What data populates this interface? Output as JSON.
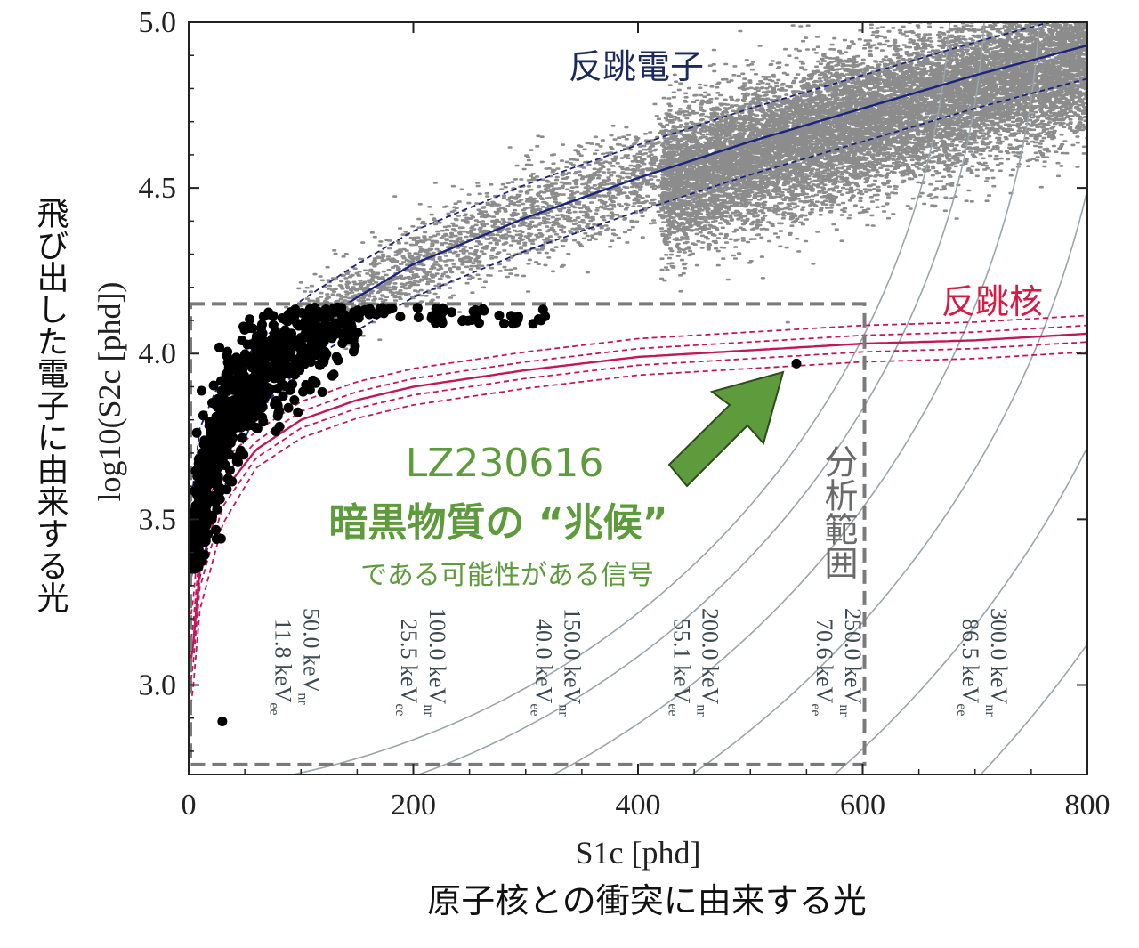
{
  "chart_data": {
    "type": "scatter",
    "xlabel": "S1c [phd]",
    "ylabel": "log10(S2c [phd])",
    "xlabel_ja": "原子核との衝突に由来する光",
    "ylabel_ja": "飛び出した電子に由来する光",
    "xlim": [
      0,
      800
    ],
    "ylim": [
      2.73,
      5.0
    ],
    "x_ticks": [
      "0",
      "200",
      "400",
      "600",
      "800"
    ],
    "y_ticks": [
      "3.0",
      "3.5",
      "4.0",
      "4.5",
      "5.0"
    ],
    "grid": false,
    "bands": [
      {
        "name": "反跳電子",
        "color": "#1a237e",
        "points": [
          [
            2,
            3.3
          ],
          [
            10,
            3.55
          ],
          [
            30,
            3.76
          ],
          [
            60,
            3.92
          ],
          [
            100,
            4.06
          ],
          [
            150,
            4.17
          ],
          [
            200,
            4.27
          ],
          [
            300,
            4.41
          ],
          [
            400,
            4.53
          ],
          [
            500,
            4.64
          ],
          [
            600,
            4.74
          ],
          [
            700,
            4.84
          ],
          [
            800,
            4.93
          ]
        ]
      },
      {
        "name": "反跳核",
        "color": "#c2185b",
        "points": [
          [
            2,
            3.05
          ],
          [
            10,
            3.35
          ],
          [
            30,
            3.58
          ],
          [
            60,
            3.71
          ],
          [
            100,
            3.8
          ],
          [
            150,
            3.86
          ],
          [
            200,
            3.9
          ],
          [
            300,
            3.95
          ],
          [
            400,
            3.99
          ],
          [
            500,
            4.01
          ],
          [
            600,
            4.03
          ],
          [
            700,
            4.04
          ],
          [
            800,
            4.06
          ]
        ]
      }
    ],
    "energy_contours": [
      {
        "nr": "50.0 keV",
        "ee": "11.8 keV",
        "x_at_bottom": 93
      },
      {
        "nr": "100.0 keV",
        "ee": "25.5 keV",
        "x_at_bottom": 205
      },
      {
        "nr": "150.0 keV",
        "ee": "40.0 keV",
        "x_at_bottom": 325
      },
      {
        "nr": "200.0 keV",
        "ee": "55.1 keV",
        "x_at_bottom": 448
      },
      {
        "nr": "250.0 keV",
        "ee": "70.6 keV",
        "x_at_bottom": 575
      },
      {
        "nr": "300.0 keV",
        "ee": "86.5 keV",
        "x_at_bottom": 705
      }
    ],
    "analysis_region": {
      "label": "分析範囲",
      "x": [
        0,
        600
      ],
      "y": [
        2.76,
        4.15
      ]
    },
    "highlight_event": {
      "id": "LZ230616",
      "x": 541,
      "y": 3.97,
      "title": "暗黒物質の “兆候”",
      "subtitle": "である可能性がある信号"
    },
    "outlier_event": {
      "x": 30,
      "y": 2.89
    },
    "unit_suffix_nr": "nr",
    "unit_suffix_ee": "ee"
  },
  "colors": {
    "er_band": "#1a237e",
    "nr_band": "#c2185b",
    "er_label": "#1a2a5c",
    "nr_label": "#d81b45",
    "calibration_points": "#8c8c8c",
    "search_events": "#000000",
    "contours": "#9aa5ab",
    "contour_labels": "#3c4a50",
    "annotation": "#5d9b3c",
    "region_box": "#7a7a7a"
  }
}
